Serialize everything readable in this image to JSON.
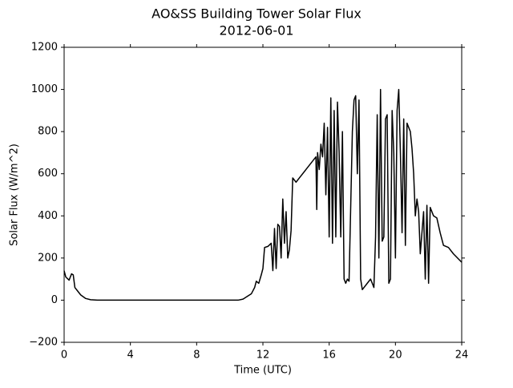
{
  "chart_data": {
    "type": "line",
    "title": "AO&SS Building Tower Solar Flux",
    "subtitle": "2012-06-01",
    "x_label": "Time (UTC)",
    "y_label": "Solar Flux (W/m^2)",
    "xlim": [
      0,
      24
    ],
    "xticks": [
      0,
      4,
      8,
      12,
      16,
      20,
      24
    ],
    "ylim": [
      -200,
      1200
    ],
    "yticks": [
      {
        "value": -200,
        "label": "−200"
      },
      0,
      200,
      400,
      600,
      800,
      1000,
      1200
    ],
    "x": [
      0,
      0.1,
      0.3,
      0.45,
      0.55,
      0.65,
      0.8,
      1.0,
      1.3,
      1.6,
      2,
      10.5,
      10.8,
      11.1,
      11.3,
      11.5,
      11.6,
      11.75,
      11.9,
      12.0,
      12.1,
      12.3,
      12.5,
      12.6,
      12.7,
      12.8,
      12.9,
      13.0,
      13.1,
      13.2,
      13.3,
      13.4,
      13.5,
      13.6,
      13.7,
      13.8,
      14.0,
      14.2,
      14.6,
      15.0,
      15.2,
      15.25,
      15.3,
      15.4,
      15.5,
      15.6,
      15.7,
      15.8,
      15.9,
      16.0,
      16.1,
      16.2,
      16.3,
      16.4,
      16.5,
      16.6,
      16.7,
      16.8,
      16.9,
      17.0,
      17.1,
      17.2,
      17.4,
      17.5,
      17.6,
      17.7,
      17.8,
      17.9,
      18.0,
      18.3,
      18.5,
      18.7,
      18.8,
      18.9,
      19.0,
      19.1,
      19.2,
      19.3,
      19.4,
      19.5,
      19.6,
      19.7,
      19.8,
      19.9,
      20.0,
      20.1,
      20.2,
      20.3,
      20.4,
      20.5,
      20.6,
      20.7,
      20.9,
      21.0,
      21.1,
      21.2,
      21.3,
      21.4,
      21.5,
      21.7,
      21.8,
      21.9,
      22.0,
      22.1,
      22.3,
      22.5,
      22.7,
      22.9,
      23.2,
      23.5,
      24
    ],
    "series": [
      {
        "color": "#000000",
        "values": [
          140,
          110,
          95,
          125,
          120,
          60,
          45,
          25,
          8,
          2,
          0,
          0,
          5,
          20,
          30,
          60,
          90,
          80,
          120,
          150,
          250,
          255,
          270,
          140,
          340,
          150,
          360,
          350,
          200,
          480,
          270,
          420,
          200,
          240,
          330,
          580,
          560,
          580,
          620,
          660,
          680,
          430,
          700,
          620,
          740,
          680,
          840,
          500,
          820,
          300,
          960,
          270,
          900,
          300,
          940,
          700,
          300,
          800,
          100,
          80,
          100,
          90,
          800,
          950,
          970,
          600,
          950,
          100,
          50,
          80,
          100,
          60,
          300,
          880,
          200,
          1000,
          280,
          300,
          860,
          880,
          80,
          100,
          900,
          700,
          200,
          900,
          1000,
          700,
          320,
          860,
          260,
          840,
          800,
          720,
          600,
          400,
          480,
          420,
          220,
          420,
          100,
          450,
          80,
          440,
          400,
          390,
          320,
          260,
          250,
          220,
          180
        ]
      }
    ]
  }
}
